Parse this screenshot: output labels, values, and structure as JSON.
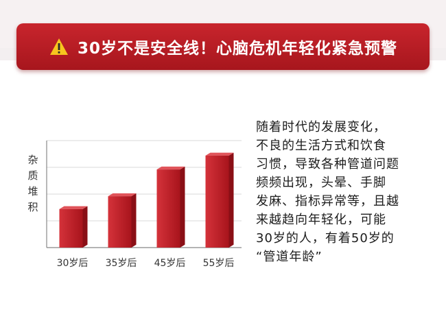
{
  "banner": {
    "title": "30岁不是安全线！心脑危机年轻化紧急预警",
    "icon": "warning-icon",
    "color": "#b51c23"
  },
  "chart_data": {
    "type": "bar",
    "categories": [
      "30岁后",
      "35岁后",
      "45岁后",
      "55岁后"
    ],
    "values": [
      36,
      48,
      73,
      86
    ],
    "ylabel": "杂质堆积",
    "xlabel": "",
    "title": "",
    "ylim": [
      0,
      100
    ],
    "grid": true,
    "bar_color": "#c0202a"
  },
  "body_text": {
    "lines": [
      "随着时代的发展变化，",
      "不良的生活方式和饮食",
      "习惯，导致各种管道问题",
      "频频出现，头晕、手脚",
      "发麻、指标异常等，且越",
      "来越趋向年轻化，可能",
      "30岁的人，有着50岁的",
      "“管道年龄”"
    ]
  }
}
